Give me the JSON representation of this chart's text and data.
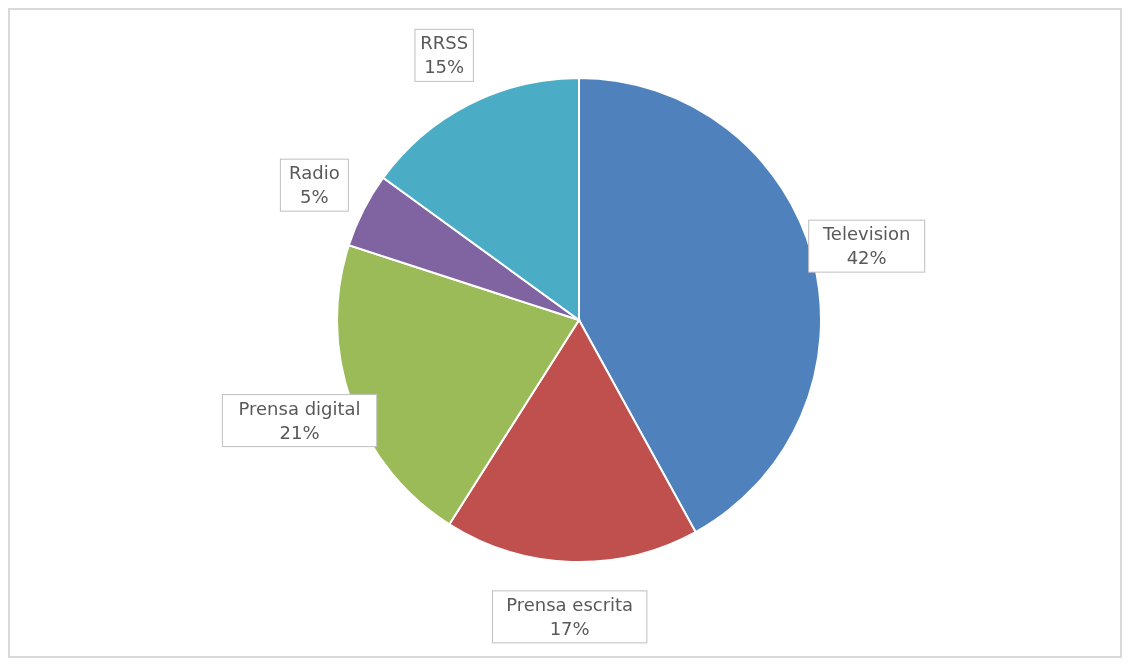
{
  "chart_data": {
    "type": "pie",
    "categories": [
      "Television",
      "Prensa escrita",
      "Prensa digital",
      "Radio",
      "RRSS"
    ],
    "values": [
      42,
      17,
      21,
      5,
      15
    ],
    "value_labels": [
      "42%",
      "17%",
      "21%",
      "5%",
      "15%"
    ],
    "colors": [
      "#4f81bd",
      "#c0504d",
      "#9bbb59",
      "#8064a2",
      "#4bacc6"
    ],
    "legend": false
  }
}
